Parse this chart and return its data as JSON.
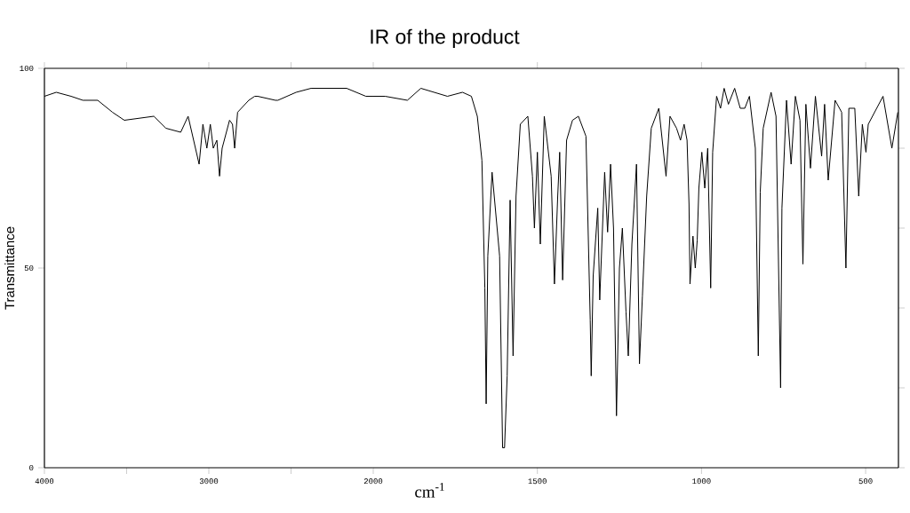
{
  "chart_data": [
    {
      "type": "line",
      "ylabel": "Transmittance",
      "color": "#000000",
      "xlim": [
        4000,
        2000
      ],
      "ylim": [
        0,
        100
      ],
      "xticks": [
        4000,
        {
          "value": 3500,
          "label": null
        },
        3000,
        {
          "value": 2500,
          "label": null
        }
      ],
      "yticks": [
        0,
        50,
        100
      ],
      "x": [
        4000,
        3928,
        3838,
        3766,
        3676,
        3586,
        3514,
        3334,
        3261,
        3171,
        3126,
        3059,
        3036,
        3012,
        2991,
        2973,
        2951,
        2935,
        2919,
        2874,
        2856,
        2843,
        2825,
        2757,
        2721,
        2703,
        2595,
        2580,
        2469,
        2378,
        2162,
        2045,
        2000
      ],
      "values": [
        93,
        94,
        93,
        92,
        92,
        89,
        87,
        88,
        85,
        84,
        88,
        76,
        86,
        80,
        86,
        80,
        82,
        73,
        80,
        87,
        86,
        80,
        89,
        92,
        93,
        93,
        92,
        92,
        94,
        95,
        95,
        93,
        93
      ]
    },
    {
      "type": "line",
      "title": "IR of the product",
      "xlabel": "cm$^{-1}$",
      "color": "#000000",
      "tick_labels": "x",
      "xlim": [
        2000,
        400
      ],
      "ylim": [
        0,
        100
      ],
      "xticks": [
        2000,
        1500,
        1000,
        500
      ],
      "x": [
        2000,
        1964,
        1896,
        1855,
        1774,
        1728,
        1701,
        1683,
        1669,
        1660,
        1656,
        1651,
        1638,
        1615,
        1606,
        1600,
        1592,
        1583,
        1574,
        1565,
        1552,
        1529,
        1515,
        1509,
        1500,
        1491,
        1479,
        1458,
        1448,
        1438,
        1432,
        1423,
        1411,
        1393,
        1375,
        1352,
        1339,
        1336,
        1330,
        1316,
        1310,
        1295,
        1286,
        1277,
        1268,
        1259,
        1250,
        1241,
        1230,
        1223,
        1212,
        1198,
        1189,
        1180,
        1167,
        1153,
        1130,
        1108,
        1096,
        1076,
        1064,
        1053,
        1044,
        1038,
        1035,
        1026,
        1019,
        1013,
        1008,
        999,
        990,
        981,
        972,
        966,
        954,
        942,
        931,
        918,
        899,
        882,
        868,
        854,
        836,
        827,
        821,
        812,
        788,
        773,
        759,
        755,
        741,
        727,
        714,
        700,
        691,
        682,
        668,
        653,
        634,
        625,
        614,
        593,
        573,
        560,
        551,
        533,
        521,
        510,
        499,
        492,
        447,
        420,
        402
      ],
      "values": [
        93,
        93,
        92,
        95,
        93,
        94,
        93,
        88,
        77,
        45,
        16,
        53,
        74,
        53,
        5,
        5,
        23,
        67,
        28,
        68,
        86,
        88,
        73,
        60,
        79,
        56,
        88,
        73,
        46,
        68,
        79,
        47,
        82,
        87,
        88,
        83,
        37,
        23,
        48,
        65,
        42,
        74,
        59,
        76,
        60,
        13,
        50,
        60,
        39,
        28,
        56,
        76,
        26,
        43,
        68,
        85,
        90,
        73,
        88,
        85,
        82,
        86,
        82,
        66,
        46,
        58,
        50,
        57,
        70,
        79,
        70,
        80,
        45,
        79,
        93,
        90,
        95,
        91,
        95,
        90,
        90,
        93,
        80,
        28,
        69,
        85,
        94,
        88,
        20,
        65,
        92,
        76,
        93,
        87,
        51,
        91,
        75,
        93,
        78,
        91,
        72,
        92,
        89,
        50,
        90,
        90,
        68,
        86,
        79,
        86,
        93,
        80,
        89
      ]
    }
  ]
}
